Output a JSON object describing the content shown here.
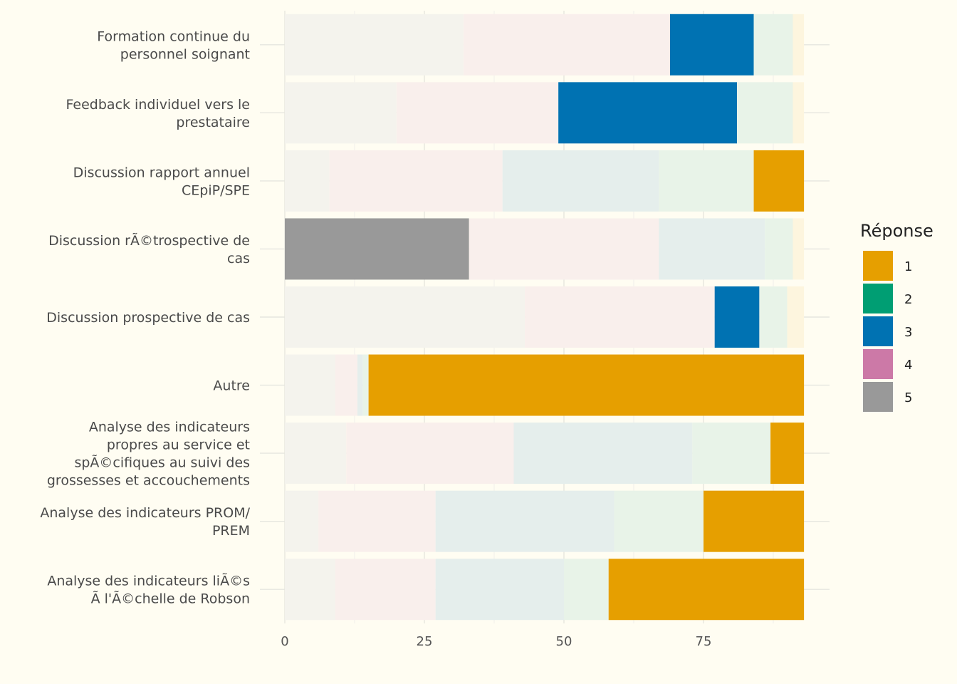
{
  "chart_data": {
    "type": "bar",
    "orientation": "horizontal",
    "stacked": true,
    "highlight_note": "",
    "categories": [
      "Formation continue du\npersonnel soignant",
      "Feedback individuel vers le\nprestataire",
      "Discussion rapport annuel\nCEpiP/SPE",
      "Discussion rÃ©trospective de\ncas",
      "Discussion prospective de cas",
      "Autre",
      "Analyse des indicateurs\npropres au service et\nspÃ©cifiques au suivi des\ngrossesses et accouchements",
      "Analyse des indicateurs PROM/\nPREM",
      "Analyse des indicateurs liÃ©s\nÃ  l'Ã©chelle de Robson"
    ],
    "series": [
      {
        "name": "5",
        "values": [
          32,
          20,
          8,
          33,
          43,
          9,
          11,
          6,
          9
        ]
      },
      {
        "name": "4",
        "values": [
          37,
          29,
          31,
          34,
          34,
          4,
          30,
          21,
          18
        ]
      },
      {
        "name": "3",
        "values": [
          15,
          32,
          28,
          19,
          8,
          1,
          32,
          32,
          23
        ]
      },
      {
        "name": "2",
        "values": [
          7,
          10,
          17,
          5,
          5,
          1,
          14,
          16,
          8
        ]
      },
      {
        "name": "1",
        "values": [
          2,
          2,
          9,
          2,
          3,
          78,
          6,
          18,
          35
        ]
      }
    ],
    "highlight": [
      {
        "category_index": 0,
        "series": "3"
      },
      {
        "category_index": 1,
        "series": "3"
      },
      {
        "category_index": 2,
        "series": "1"
      },
      {
        "category_index": 3,
        "series": "5"
      },
      {
        "category_index": 4,
        "series": "3"
      },
      {
        "category_index": 5,
        "series": "1"
      },
      {
        "category_index": 6,
        "series": "1"
      },
      {
        "category_index": 7,
        "series": "1"
      },
      {
        "category_index": 8,
        "series": "1"
      }
    ],
    "xlim": [
      0,
      98
    ],
    "xticks": [
      0,
      25,
      50,
      75
    ],
    "grid": true,
    "legend": {
      "title": "Réponse",
      "placement": "right",
      "items": [
        "1",
        "2",
        "3",
        "4",
        "5"
      ]
    },
    "colors": {
      "1": "#e69f00",
      "2": "#009e73",
      "3": "#0072b2",
      "4": "#cc79a7",
      "5": "#999999"
    },
    "faded_colors": {
      "1": "#fdf5de",
      "2": "#e8f3e8",
      "3": "#e5eeec",
      "4": "#f9efec",
      "5": "#f4f3ed"
    },
    "background": "#fffdf2"
  }
}
